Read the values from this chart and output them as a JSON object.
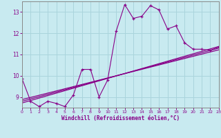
{
  "xlabel": "Windchill (Refroidissement éolien,°C)",
  "xlim": [
    0,
    23
  ],
  "ylim": [
    8.5,
    13.5
  ],
  "yticks": [
    9,
    10,
    11,
    12,
    13
  ],
  "xticks": [
    0,
    1,
    2,
    3,
    4,
    5,
    6,
    7,
    8,
    9,
    10,
    11,
    12,
    13,
    14,
    15,
    16,
    17,
    18,
    19,
    20,
    21,
    22,
    23
  ],
  "bg_color": "#c8eaf0",
  "line_color": "#880088",
  "grid_color": "#aad4dc",
  "series1_x": [
    0,
    1,
    2,
    3,
    4,
    5,
    6,
    7,
    8,
    9,
    10,
    11,
    12,
    13,
    14,
    15,
    16,
    17,
    18,
    19,
    20,
    21,
    22,
    23
  ],
  "series1_y": [
    9.85,
    8.8,
    8.55,
    8.8,
    8.7,
    8.55,
    9.1,
    10.3,
    10.3,
    9.0,
    9.8,
    12.1,
    13.35,
    12.7,
    12.8,
    13.3,
    13.1,
    12.2,
    12.35,
    11.55,
    11.25,
    11.25,
    11.2,
    11.35
  ],
  "series2_x": [
    0,
    23
  ],
  "series2_y": [
    8.72,
    11.38
  ],
  "series3_x": [
    0,
    23
  ],
  "series3_y": [
    8.88,
    11.22
  ],
  "series4_x": [
    0,
    23
  ],
  "series4_y": [
    8.8,
    11.3
  ]
}
